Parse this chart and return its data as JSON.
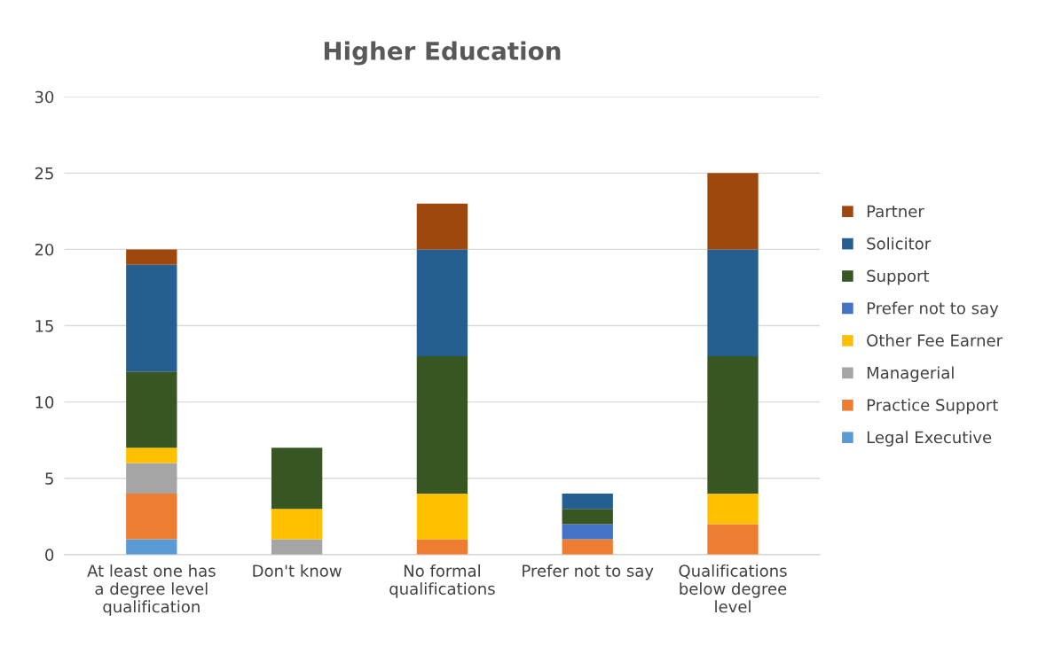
{
  "chart_data": {
    "type": "bar",
    "title": "Higher Education",
    "stacked": true,
    "categories": [
      "At least one has\na degree level\nqualification",
      "Don't know",
      "No formal\nqualifications",
      "Prefer not to say",
      "Qualifications\nbelow degree\nlevel"
    ],
    "series": [
      {
        "name": "Legal Executive",
        "color": "#5b9bd5",
        "values": [
          1,
          null,
          null,
          null,
          null
        ]
      },
      {
        "name": "Practice Support",
        "color": "#ed7d31",
        "values": [
          3,
          null,
          1,
          1,
          2
        ]
      },
      {
        "name": "Managerial",
        "color": "#a5a5a5",
        "values": [
          2,
          1,
          null,
          null,
          null
        ]
      },
      {
        "name": "Other Fee Earner",
        "color": "#ffc000",
        "values": [
          1,
          2,
          3,
          null,
          2
        ]
      },
      {
        "name": "Prefer not to say",
        "color": "#4472c4",
        "values": [
          null,
          null,
          null,
          1,
          null
        ]
      },
      {
        "name": "Support",
        "color": "#375623",
        "values": [
          5,
          4,
          9,
          1,
          9
        ]
      },
      {
        "name": "Solicitor",
        "color": "#255e91",
        "values": [
          7,
          null,
          7,
          1,
          7
        ]
      },
      {
        "name": "Partner",
        "color": "#9e480e",
        "values": [
          1,
          null,
          3,
          null,
          5
        ]
      }
    ],
    "ylim": [
      0,
      30
    ],
    "yticks": [
      0,
      5,
      10,
      15,
      20,
      25,
      30
    ],
    "grid": "y",
    "legend": "right"
  }
}
